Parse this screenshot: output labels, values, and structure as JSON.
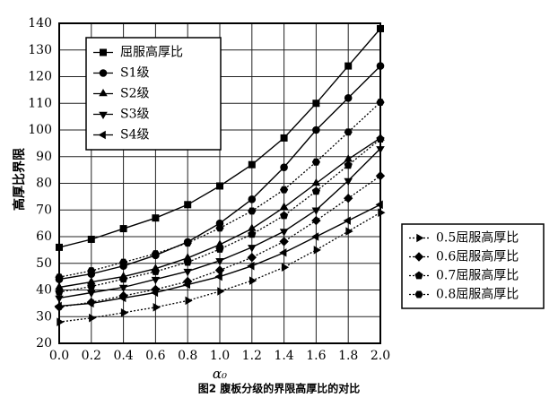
{
  "chart_data": {
    "type": "line",
    "caption": "图2 腹板分级的界限高厚比的对比",
    "x_label": "α₀",
    "y_label": "高厚比界限",
    "x": [
      0,
      0.2,
      0.4,
      0.6,
      0.8,
      1.0,
      1.2,
      1.4,
      1.6,
      1.8,
      2.0
    ],
    "xlim": [
      0,
      2.0
    ],
    "xticks": [
      {
        "value": 0,
        "label": "0.0"
      },
      0.2,
      0.4,
      0.6,
      0.8,
      {
        "value": 1,
        "label": "1.0"
      },
      1.2,
      1.4,
      1.6,
      1.8,
      {
        "value": 2,
        "label": "2.0"
      }
    ],
    "ylim": [
      20,
      140
    ],
    "yticks": [
      20,
      30,
      40,
      50,
      60,
      70,
      80,
      90,
      100,
      110,
      120,
      130,
      140
    ],
    "grid": true,
    "series": [
      {
        "name": "屈服高厚比",
        "color": "#000000",
        "marker": "square",
        "line_style": "solid",
        "values": [
          56,
          59,
          63,
          67,
          72,
          79,
          87,
          97,
          110,
          124,
          138
        ]
      },
      {
        "name": "S1级",
        "color": "#000000",
        "marker": "circle",
        "line_style": "solid",
        "values": [
          44,
          46,
          49,
          53,
          58,
          65,
          74,
          86,
          100,
          112,
          124
        ]
      },
      {
        "name": "S2级",
        "color": "#000000",
        "marker": "triangle-up",
        "line_style": "solid",
        "values": [
          41,
          43,
          45,
          48,
          52,
          57,
          63,
          71,
          80,
          89,
          97
        ]
      },
      {
        "name": "S3级",
        "color": "#000000",
        "marker": "triangle-down",
        "line_style": "solid",
        "values": [
          37,
          39,
          41,
          44,
          47,
          51,
          56,
          62,
          70,
          81,
          93
        ]
      },
      {
        "name": "S4级",
        "color": "#000000",
        "marker": "triangle-left",
        "line_style": "solid",
        "values": [
          34,
          35,
          37,
          39,
          42,
          45,
          49,
          54,
          60,
          66,
          72
        ]
      },
      {
        "name": "0.5屈服高厚比",
        "color": "#000000",
        "marker": "triangle-right",
        "line_style": "dotted",
        "values": [
          28,
          29.5,
          31.5,
          33.5,
          36,
          39.5,
          43.5,
          48.5,
          55,
          62,
          69
        ]
      },
      {
        "name": "0.6屈服高厚比",
        "color": "#000000",
        "marker": "diamond",
        "line_style": "dotted",
        "values": [
          33.6,
          35.4,
          37.8,
          40.2,
          43.2,
          47.4,
          52.2,
          58.2,
          66,
          74.4,
          82.8
        ]
      },
      {
        "name": "0.7屈服高厚比",
        "color": "#000000",
        "marker": "pentagon",
        "line_style": "dotted",
        "values": [
          39.2,
          41.3,
          44.1,
          46.9,
          50.4,
          55.3,
          60.9,
          67.9,
          77,
          86.8,
          96.6
        ]
      },
      {
        "name": "0.8屈服高厚比",
        "color": "#000000",
        "marker": "hexagon",
        "line_style": "dotted",
        "values": [
          44.8,
          47.2,
          50.4,
          53.6,
          57.6,
          63.2,
          69.6,
          77.6,
          88,
          99.2,
          110.4
        ]
      }
    ]
  }
}
